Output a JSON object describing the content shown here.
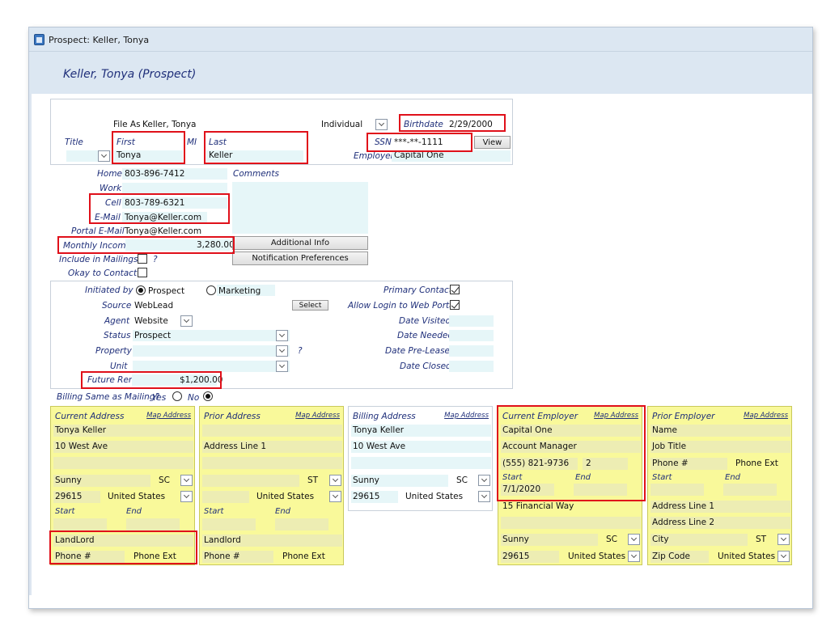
{
  "window": {
    "title": "Prospect: Keller, Tonya",
    "page_title": "Keller, Tonya (Prospect)"
  },
  "name": {
    "file_as_label": "File As",
    "file_as_value": "Keller, Tonya",
    "type_value": "Individual",
    "birthdate_label": "Birthdate",
    "birthdate_value": "2/29/2000",
    "title_label": "Title",
    "first_label": "First",
    "first_value": "Tonya",
    "mi_label": "MI",
    "last_label": "Last",
    "last_value": "Keller",
    "ssn_label": "SSN",
    "ssn_value": "***-**-1111",
    "view_label": "View",
    "employer_label": "Employer",
    "employer_value": "Capital One"
  },
  "contact": {
    "home_label": "Home",
    "home_value": "803-896-7412",
    "work_label": "Work",
    "work_value": "",
    "cell_label": "Cell",
    "cell_value": "803-789-6321",
    "email_label": "E-Mail",
    "email_value": "Tonya@Keller.com",
    "portal_label": "Portal E-Mail",
    "portal_value": "Tonya@Keller.com",
    "income_label": "Monthly Income",
    "income_value": "3,280.00",
    "mailings_label": "Include in Mailings?",
    "mailings_q": "?",
    "contact_label": "Okay to Contact?",
    "comments_label": "Comments",
    "additional_info_label": "Additional Info",
    "notification_label": "Notification Preferences"
  },
  "lead": {
    "initiated_label": "Initiated by",
    "opt_prospect": "Prospect",
    "opt_marketing": "Marketing",
    "source_label": "Source",
    "source_value": "WebLead",
    "select_label": "Select",
    "agent_label": "Agent",
    "agent_value": "Website",
    "status_label": "Status",
    "status_value": "Prospect",
    "property_label": "Property",
    "property_q": "?",
    "unit_label": "Unit",
    "rent_label": "Future Rent",
    "rent_value": "$1,200.00",
    "primary_label": "Primary Contact",
    "allow_label": "Allow Login to Web Portal",
    "visited_label": "Date Visited",
    "needed_label": "Date Needed",
    "preleased_label": "Date Pre-Leased",
    "closed_label": "Date Closed"
  },
  "billing_same": {
    "label": "Billing Same as Mailing?",
    "yes": "Yes",
    "no": "No"
  },
  "boxes": {
    "map": "Map Address",
    "current_address": {
      "heading": "Current Address",
      "name": "Tonya Keller",
      "line1": "10 West Ave",
      "line2": "",
      "city": "Sunny",
      "state": "SC",
      "zip": "29615",
      "country": "United States",
      "start": "Start",
      "end": "End",
      "landlord": "LandLord",
      "phone": "Phone #",
      "phone_ext": "Phone Ext"
    },
    "prior_address": {
      "heading": "Prior Address",
      "line1": "Address Line 1",
      "state": "ST",
      "country": "United States",
      "start": "Start",
      "end": "End",
      "landlord": "Landlord",
      "phone": "Phone #",
      "phone_ext": "Phone Ext"
    },
    "billing_address": {
      "heading": "Billing Address",
      "name": "Tonya Keller",
      "line1": "10 West Ave",
      "city": "Sunny",
      "state": "SC",
      "zip": "29615",
      "country": "United States"
    },
    "current_employer": {
      "heading": "Current Employer",
      "name": "Capital One",
      "title": "Account Manager",
      "phone": "(555) 821-9736",
      "ext": "2",
      "start": "Start",
      "end": "End",
      "start_value": "7/1/2020",
      "line1": "15 Financial Way",
      "city": "Sunny",
      "state": "SC",
      "zip": "29615",
      "country": "United States"
    },
    "prior_employer": {
      "heading": "Prior Employer",
      "name": "Name",
      "title": "Job Title",
      "phone": "Phone #",
      "phone_ext": "Phone Ext",
      "start": "Start",
      "end": "End",
      "line1": "Address Line 1",
      "line2": "Address Line 2",
      "city": "City",
      "state": "ST",
      "zip": "Zip Code",
      "country": "United States"
    }
  },
  "colors": {
    "highlight": "#e0101a",
    "address_box": "#f9f99a",
    "field": "#e6f6f8",
    "label": "#1f2f7a"
  }
}
